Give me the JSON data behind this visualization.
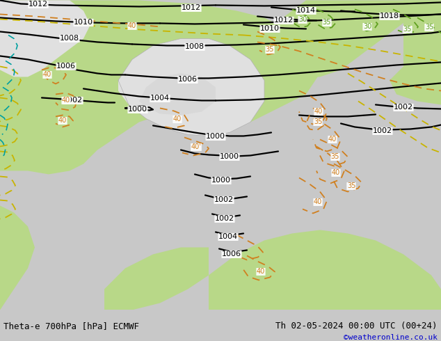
{
  "title_left": "Theta-e 700hPa [hPa] ECMWF",
  "title_right": "Th 02-05-2024 00:00 UTC (00+24)",
  "credit": "©weatheronline.co.uk",
  "bg_green": "#b8d888",
  "bg_gray": "#c8c8c8",
  "bg_light_gray": "#e0e0e0",
  "bg_white": "#f5f5f5",
  "pressure_color": "#000000",
  "theta_orange": "#d08020",
  "theta_yellow": "#c8b400",
  "theta_green": "#60a020",
  "theta_cyan": "#00a0a0",
  "border_color": "#888888",
  "bottom_bar": "#c8c8c8",
  "credit_color": "#0000cc",
  "fig_width": 6.34,
  "fig_height": 4.9,
  "dpi": 100
}
